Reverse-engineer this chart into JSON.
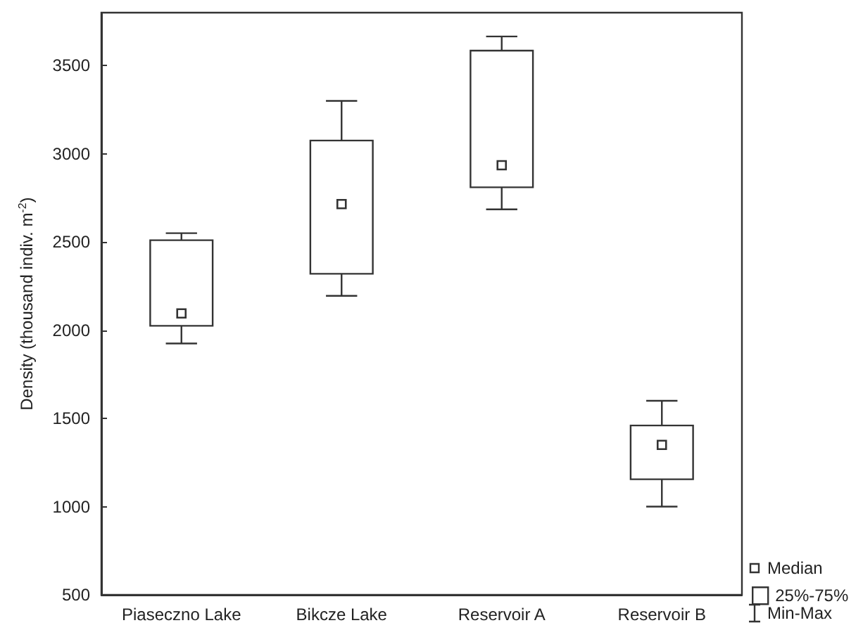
{
  "chart_data": {
    "type": "box",
    "ylabel": "Density (thousand indiv. m$^{-2}$)",
    "categories": [
      "Piaseczno Lake",
      "Bikcze Lake",
      "Reservoir A",
      "Reservoir B"
    ],
    "series": [
      {
        "name": "25%-75%",
        "color": "#333333",
        "boxes": [
          {
            "low": 1925,
            "q1": 2025,
            "median": 2095,
            "q3": 2510,
            "high": 2550
          },
          {
            "low": 2195,
            "q1": 2320,
            "median": 2715,
            "q3": 3075,
            "high": 3300
          },
          {
            "low": 2685,
            "q1": 2810,
            "median": 2935,
            "q3": 3585,
            "high": 3665
          },
          {
            "low": 1000,
            "q1": 1155,
            "median": 1350,
            "q3": 1460,
            "high": 1600
          }
        ]
      }
    ],
    "ylim": [
      500,
      3800
    ],
    "yticks": [
      500,
      1000,
      1500,
      2000,
      2500,
      3000,
      3500
    ],
    "legend": "bottom right",
    "annotations": [
      "Median",
      "Min-Max"
    ]
  }
}
